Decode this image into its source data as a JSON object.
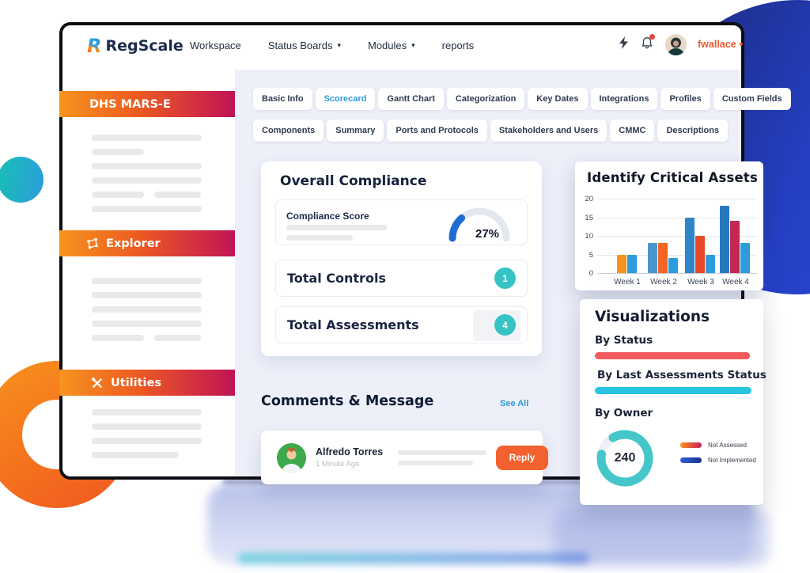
{
  "nav": {
    "logo": "RegScale",
    "items": [
      {
        "label": "Workspace",
        "dropdown": false
      },
      {
        "label": "Status Boards",
        "dropdown": true
      },
      {
        "label": "Modules",
        "dropdown": true
      },
      {
        "label": "reports",
        "dropdown": false
      }
    ],
    "user": {
      "name": "fwallace"
    }
  },
  "sidebar": {
    "sections": [
      {
        "label": "DHS MARS-E",
        "icon": null
      },
      {
        "label": "Explorer",
        "icon": "graph-icon"
      },
      {
        "label": "Utilities",
        "icon": "tools-icon"
      }
    ]
  },
  "tabs": {
    "active": "Scorecard",
    "row1": [
      "Basic Info",
      "Scorecard",
      "Gantt Chart",
      "Categorization",
      "Key Dates",
      "Integrations",
      "Profiles",
      "Custom Fields"
    ],
    "row2": [
      "Components",
      "Summary",
      "Ports and Protocols",
      "Stakeholders and Users",
      "CMMC",
      "Descriptions"
    ]
  },
  "compliance": {
    "title": "Overall Compliance",
    "score_label": "Compliance Score",
    "score_percent": 27,
    "score_display": "27%",
    "gauge_color": "#1e6bd6",
    "rows": [
      {
        "label": "Total Controls",
        "badge": "1"
      },
      {
        "label": "Total Assessments",
        "badge": "4"
      }
    ]
  },
  "comments": {
    "heading": "Comments & Message",
    "see_all": "See All",
    "items": [
      {
        "author": "Alfredo Torres",
        "time": "1 Minute Ago",
        "action": "Reply"
      }
    ]
  },
  "assets_panel": {
    "title": "Identify Critical Assets"
  },
  "visualizations": {
    "title": "Visualizations",
    "sections": [
      {
        "label": "By Status",
        "bar_color": "#f05a5c"
      },
      {
        "label": "By Last Assessments Status",
        "bar_color": "#28c4e0"
      },
      {
        "label": "By Owner"
      }
    ],
    "donut": {
      "value": "240",
      "color": "#45c6c9",
      "track": "#edf0f4",
      "fill_percent": 86
    },
    "legend": [
      {
        "label": "Not Assessed",
        "colors": [
          "#f7941e",
          "#c81e5b"
        ]
      },
      {
        "label": "Not Implemented",
        "colors": [
          "#2e62d9",
          "#1b2e8a"
        ]
      }
    ]
  },
  "chart_data": [
    {
      "type": "bar",
      "title": "Identify Critical Assets",
      "categories": [
        "Week 1",
        "Week 2",
        "Week 3",
        "Week 4"
      ],
      "groups": [
        {
          "category": "Week 1",
          "bars": [
            {
              "value": 5,
              "color": "#f7941e"
            },
            {
              "value": 5,
              "color": "#2d9cdb"
            }
          ]
        },
        {
          "category": "Week 2",
          "bars": [
            {
              "value": 8,
              "color": "#4a97ce"
            },
            {
              "value": 8,
              "color": "#f26522"
            },
            {
              "value": 4,
              "color": "#2d9cdb"
            }
          ]
        },
        {
          "category": "Week 3",
          "bars": [
            {
              "value": 15,
              "color": "#2e86c8"
            },
            {
              "value": 10,
              "color": "#e74b25"
            },
            {
              "value": 5,
              "color": "#2d9cdb"
            }
          ]
        },
        {
          "category": "Week 4",
          "bars": [
            {
              "value": 18,
              "color": "#2679be"
            },
            {
              "value": 14,
              "color": "#c22850"
            },
            {
              "value": 8,
              "color": "#2d9cdb"
            }
          ]
        }
      ],
      "ylim": [
        0,
        20
      ],
      "yticks": [
        0,
        5,
        10,
        15,
        20
      ],
      "xlabel": "",
      "ylabel": "",
      "grid": true,
      "legend_position": "none"
    },
    {
      "type": "pie",
      "title": "By Owner",
      "center_label": "240",
      "slices": [
        {
          "label": "filled",
          "value": 86,
          "color": "#45c6c9"
        },
        {
          "label": "remainder",
          "value": 14,
          "color": "#edf0f4"
        }
      ]
    },
    {
      "type": "gauge",
      "title": "Compliance Score",
      "value": 27,
      "max": 100,
      "display": "27%",
      "color": "#1e6bd6"
    }
  ],
  "colors": {
    "accent_orange": "#f2612e",
    "brand_navy": "#1c2b4a",
    "active_tab_blue": "#2d9cdb",
    "teal_badge": "#35c3c4",
    "sidebar_gradient": [
      "#f7941e",
      "#c01355"
    ],
    "content_bg": "#edeff9"
  }
}
